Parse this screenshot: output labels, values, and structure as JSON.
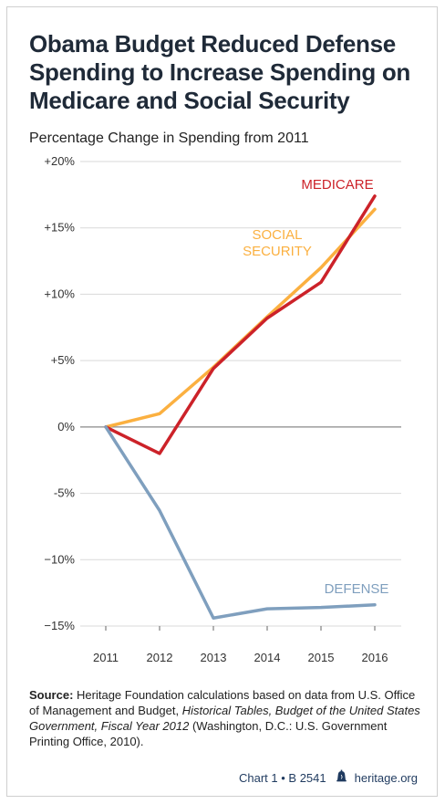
{
  "title": "Obama Budget Reduced Defense\nSpending to Increase Spending on\nMedicare and Social Security",
  "subtitle": "Percentage Change in Spending from 2011",
  "source": {
    "label": "Source:",
    "text_1": " Heritage Foundation calculations based on data from U.S. Office of Management and Budget, ",
    "italic": "Historical Tables, Budget of the United States Government, Fiscal Year 2012",
    "text_2": " (Washington, D.C.: U.S. Government Printing Office, 2010)."
  },
  "footer": {
    "chart_ref": "Chart 1 • B 2541",
    "site": "heritage.org",
    "icon": "liberty-bell-icon"
  },
  "colors": {
    "medicare": "#cc2229",
    "social_security": "#fbb040",
    "defense": "#7f9fbe",
    "zero_line": "#888888",
    "grid": "#d9d9d9"
  },
  "chart_data": {
    "type": "line",
    "title": "Obama Budget Reduced Defense Spending to Increase Spending on Medicare and Social Security",
    "subtitle": "Percentage Change in Spending from 2011",
    "xlabel": "",
    "ylabel": "",
    "categories": [
      "2011",
      "2012",
      "2013",
      "2014",
      "2015",
      "2016"
    ],
    "ylim": [
      -15,
      20
    ],
    "yticks": [
      20,
      15,
      10,
      5,
      0,
      -5,
      -10,
      -15
    ],
    "ytick_labels": [
      "+20%",
      "+15%",
      "+10%",
      "+5%",
      "0%",
      "−10%",
      "−15%"
    ],
    "ytick_labels_full": [
      "+20%",
      "+15%",
      "+10%",
      "+5%",
      "0%",
      "-5%",
      "−10%",
      "−15%"
    ],
    "grid": true,
    "legend": "inline labels",
    "series": [
      {
        "name": "SOCIAL SECURITY",
        "label_lines": [
          "SOCIAL",
          "SECURITY"
        ],
        "color": "#fbb040",
        "values": [
          0,
          1.0,
          4.5,
          8.3,
          12.0,
          16.4
        ]
      },
      {
        "name": "MEDICARE",
        "label_lines": [
          "MEDICARE"
        ],
        "color": "#cc2229",
        "values": [
          0,
          -2.0,
          4.4,
          8.2,
          10.9,
          17.4
        ]
      },
      {
        "name": "DEFENSE",
        "label_lines": [
          "DEFENSE"
        ],
        "color": "#7f9fbe",
        "values": [
          0,
          -6.3,
          -14.4,
          -13.7,
          -13.6,
          -13.4
        ]
      }
    ]
  }
}
